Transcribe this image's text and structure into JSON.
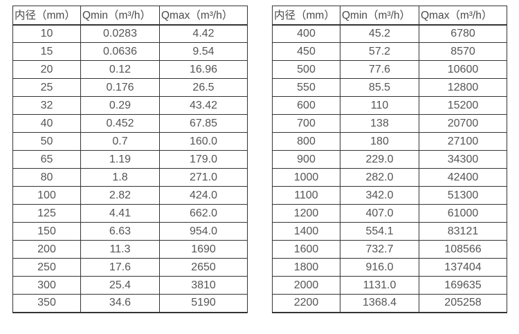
{
  "colors": {
    "border": "#333333",
    "text": "#555555",
    "header_text": "#4a4a4a",
    "background": "#ffffff"
  },
  "tables": [
    {
      "name": "flow-table-small-diameters",
      "headers": [
        "内径（mm）",
        "Qmin（m³/h）",
        "Qmax（m³/h）"
      ],
      "rows": [
        [
          "10",
          "0.0283",
          "4.42"
        ],
        [
          "15",
          "0.0636",
          "9.54"
        ],
        [
          "20",
          "0.12",
          "16.96"
        ],
        [
          "25",
          "0.176",
          "26.5"
        ],
        [
          "32",
          "0.29",
          "43.42"
        ],
        [
          "40",
          "0.452",
          "67.85"
        ],
        [
          "50",
          "0.7",
          "160.0"
        ],
        [
          "65",
          "1.19",
          "179.0"
        ],
        [
          "80",
          "1.8",
          "271.0"
        ],
        [
          "100",
          "2.82",
          "424.0"
        ],
        [
          "125",
          "4.41",
          "662.0"
        ],
        [
          "150",
          "6.63",
          "954.0"
        ],
        [
          "200",
          "11.3",
          "1690"
        ],
        [
          "250",
          "17.6",
          "2650"
        ],
        [
          "300",
          "25.4",
          "3810"
        ],
        [
          "350",
          "34.6",
          "5190"
        ]
      ]
    },
    {
      "name": "flow-table-large-diameters",
      "headers": [
        "内径（mm）",
        "Qmin（m³/h）",
        "Qmax（m³/h）"
      ],
      "rows": [
        [
          "400",
          "45.2",
          "6780"
        ],
        [
          "450",
          "57.2",
          "8570"
        ],
        [
          "500",
          "77.6",
          "10600"
        ],
        [
          "550",
          "85.5",
          "12800"
        ],
        [
          "600",
          "110",
          "15200"
        ],
        [
          "700",
          "138",
          "20700"
        ],
        [
          "800",
          "180",
          "27100"
        ],
        [
          "900",
          "229.0",
          "34300"
        ],
        [
          "1000",
          "282.0",
          "42400"
        ],
        [
          "1100",
          "342.0",
          "51300"
        ],
        [
          "1200",
          "407.0",
          "61000"
        ],
        [
          "1400",
          "554.1",
          "83121"
        ],
        [
          "1600",
          "732.7",
          "108566"
        ],
        [
          "1800",
          "916.0",
          "137404"
        ],
        [
          "2000",
          "1131.0",
          "169635"
        ],
        [
          "2200",
          "1368.4",
          "205258"
        ]
      ]
    }
  ]
}
